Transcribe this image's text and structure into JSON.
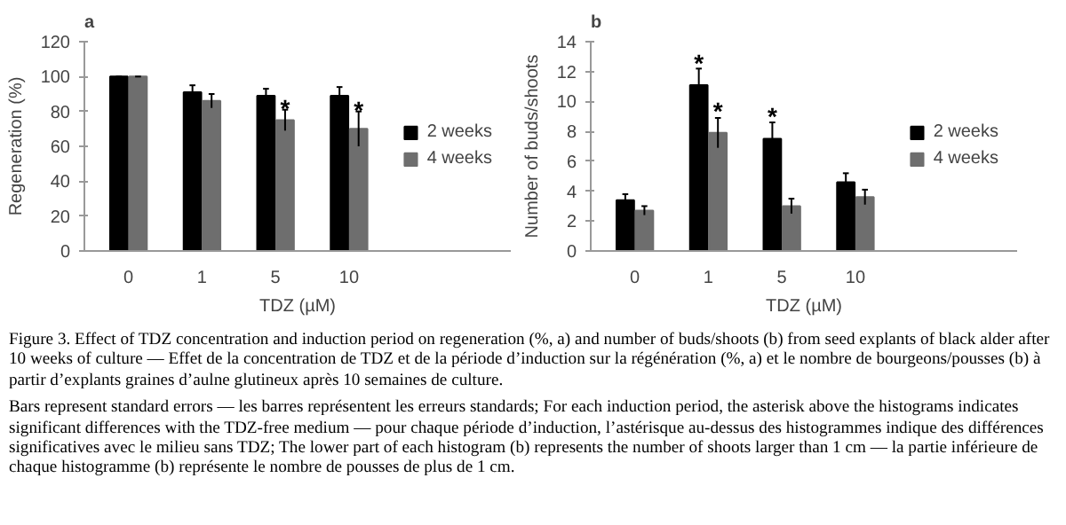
{
  "chart_data": [
    {
      "type": "bar",
      "title": "a",
      "categories": [
        "0",
        "1",
        "5",
        "10"
      ],
      "xlabel": "TDZ (µM)",
      "ylabel": "Regeneration (%)",
      "ylim": [
        0,
        120
      ],
      "yticks": [
        0,
        20,
        40,
        60,
        80,
        100,
        120
      ],
      "legend": "right",
      "grid": false,
      "series": [
        {
          "name": "2 weeks",
          "color": "#000000",
          "values": [
            100,
            91,
            89,
            89
          ],
          "errors": [
            0,
            4,
            4,
            5
          ]
        },
        {
          "name": "4 weeks",
          "color": "#6e6e6e",
          "values": [
            100,
            86,
            75,
            70
          ],
          "errors": [
            0,
            4,
            6,
            10
          ]
        }
      ],
      "annotations": [
        {
          "text": "*",
          "x": "5",
          "y": 82
        },
        {
          "text": "*",
          "x": "10",
          "y": 81
        },
        "Figure 3. Effect of TDZ concentration and induction period on regeneration (%, a) and number of buds/shoots (b) from seed explants of black alder after 10 weeks of culture — Effet de la concentration de TDZ et de la période d’induction sur la régénération (%, a) et le nombre de bourgeons/pousses (b) à partir d’explants graines d’aulne glutineux après 10 semaines de culture.",
        "Bars represent standard errors — les barres représentent les erreurs standards; For each induction period, the asterisk above the histograms indicates significant differences with the TDZ-free medium — pour chaque période d’induction, l’astérisque au-dessus des histogrammes indique des différences significatives avec le milieu sans TDZ; The lower part of each histogram (b) represents the number of shoots larger than 1 cm — la partie inférieure de chaque histogramme (b) représente le nombre de pousses de plus de 1 cm."
      ]
    },
    {
      "type": "bar",
      "title": "b",
      "categories": [
        "0",
        "1",
        "5",
        "10"
      ],
      "xlabel": "TDZ (µM)",
      "ylabel": "Number of buds/shoots",
      "ylim": [
        0,
        14
      ],
      "yticks": [
        0,
        2,
        4,
        6,
        8,
        10,
        12,
        14
      ],
      "legend": "right",
      "grid": false,
      "series": [
        {
          "name": "2 weeks",
          "color": "#000000",
          "values": [
            3.4,
            11.1,
            7.5,
            4.6
          ],
          "errors": [
            0.4,
            1.1,
            1.1,
            0.6
          ]
        },
        {
          "name": "4 weeks",
          "color": "#6e6e6e",
          "values": [
            2.7,
            7.9,
            3.0,
            3.6
          ],
          "errors": [
            0.3,
            1.0,
            0.5,
            0.5
          ]
        }
      ],
      "annotations": [
        {
          "text": "*",
          "x": "1",
          "y": 12.6
        },
        {
          "text": "*",
          "x": "1",
          "y": 9.4
        },
        {
          "text": "*",
          "x": "5",
          "y": 9.0
        }
      ]
    }
  ]
}
